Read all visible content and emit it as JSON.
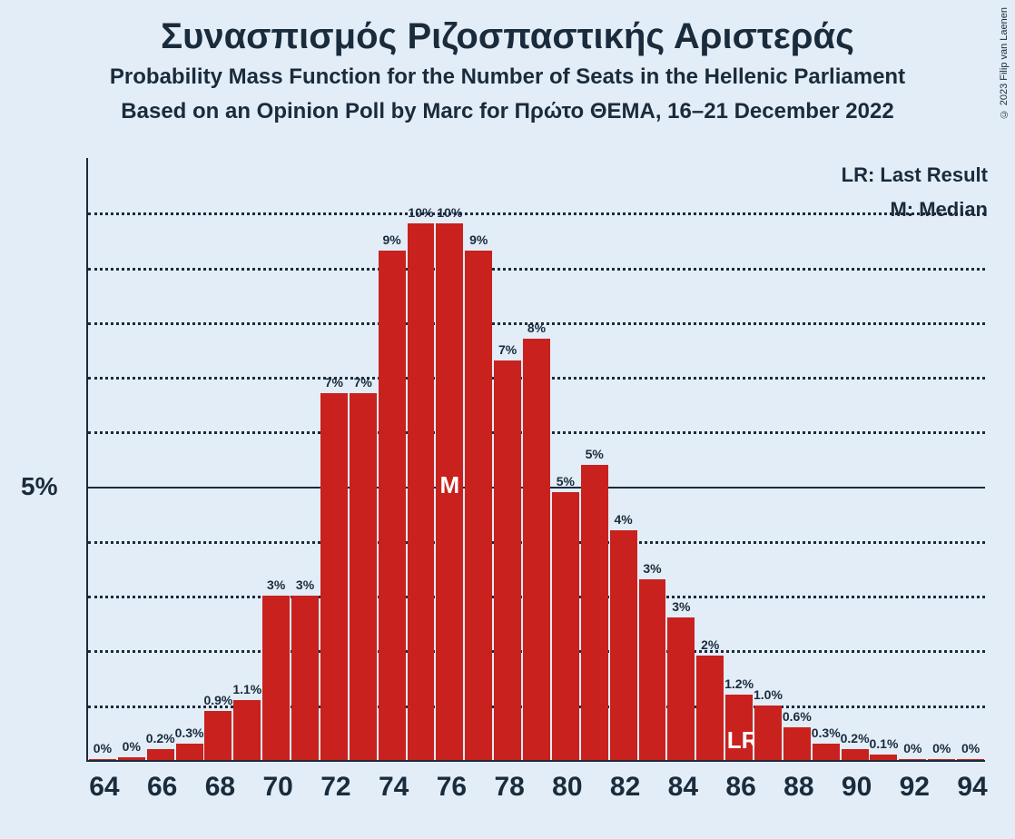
{
  "title": "Συνασπισμός Ριζοσπαστικής Αριστεράς",
  "subtitle1": "Probability Mass Function for the Number of Seats in the Hellenic Parliament",
  "subtitle2": "Based on an Opinion Poll by Marc for Πρώτο ΘΕΜΑ, 16–21 December 2022",
  "legend_lr": "LR: Last Result",
  "legend_m": "M: Median",
  "copyright": "© 2023 Filip van Laenen",
  "chart": {
    "type": "bar",
    "bar_color": "#c9211e",
    "background_color": "#e2edf7",
    "text_color": "#1a2b3c",
    "ylim": [
      0,
      11
    ],
    "y_major_tick": 5,
    "y_major_label": "5%",
    "y_minor_step": 1,
    "x_start": 64,
    "x_end": 94,
    "x_label_step": 2,
    "bar_gap_ratio": 0.06,
    "bars": [
      {
        "x": 64,
        "value": 0.02,
        "label": "0%"
      },
      {
        "x": 65,
        "value": 0.05,
        "label": "0%"
      },
      {
        "x": 66,
        "value": 0.2,
        "label": "0.2%"
      },
      {
        "x": 67,
        "value": 0.3,
        "label": "0.3%"
      },
      {
        "x": 68,
        "value": 0.9,
        "label": "0.9%"
      },
      {
        "x": 69,
        "value": 1.1,
        "label": "1.1%"
      },
      {
        "x": 70,
        "value": 3.0,
        "label": "3%"
      },
      {
        "x": 71,
        "value": 3.0,
        "label": "3%"
      },
      {
        "x": 72,
        "value": 6.7,
        "label": "7%"
      },
      {
        "x": 73,
        "value": 6.7,
        "label": "7%"
      },
      {
        "x": 74,
        "value": 9.3,
        "label": "9%"
      },
      {
        "x": 75,
        "value": 9.8,
        "label": "10%"
      },
      {
        "x": 76,
        "value": 9.8,
        "label": "10%"
      },
      {
        "x": 77,
        "value": 9.3,
        "label": "9%"
      },
      {
        "x": 78,
        "value": 7.3,
        "label": "7%"
      },
      {
        "x": 79,
        "value": 7.7,
        "label": "8%"
      },
      {
        "x": 80,
        "value": 4.9,
        "label": "5%"
      },
      {
        "x": 81,
        "value": 5.4,
        "label": "5%"
      },
      {
        "x": 82,
        "value": 4.2,
        "label": "4%"
      },
      {
        "x": 83,
        "value": 3.3,
        "label": "3%"
      },
      {
        "x": 84,
        "value": 2.6,
        "label": "3%"
      },
      {
        "x": 85,
        "value": 1.9,
        "label": "2%"
      },
      {
        "x": 86,
        "value": 1.2,
        "label": "1.2%"
      },
      {
        "x": 87,
        "value": 1.0,
        "label": "1.0%"
      },
      {
        "x": 88,
        "value": 0.6,
        "label": "0.6%"
      },
      {
        "x": 89,
        "value": 0.3,
        "label": "0.3%"
      },
      {
        "x": 90,
        "value": 0.2,
        "label": "0.2%"
      },
      {
        "x": 91,
        "value": 0.1,
        "label": "0.1%"
      },
      {
        "x": 92,
        "value": 0.02,
        "label": "0%"
      },
      {
        "x": 93,
        "value": 0.01,
        "label": "0%"
      },
      {
        "x": 94,
        "value": 0.01,
        "label": "0%"
      }
    ],
    "median_x": 76,
    "median_label": "M",
    "last_result_x": 86,
    "last_result_label": "LR"
  }
}
